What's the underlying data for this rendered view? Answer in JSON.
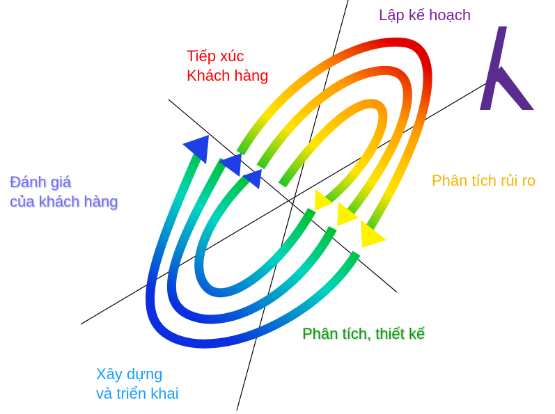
{
  "labels": {
    "planning": "Lập kế hoạch",
    "contact_line1": "Tiếp xúc",
    "contact_line2": "Khách hàng",
    "evaluation_line1": "Đánh giá",
    "evaluation_line2": "của khách hàng",
    "risk_analysis": "Phân tích rủi ro",
    "design": "Phân tích, thiết kế",
    "build_line1": "Xây dựng",
    "build_line2": "và triển khai"
  },
  "colors": {
    "planning": "#7b1fa2",
    "contact": "#ff0000",
    "evaluation": "#6b6bff",
    "risk_analysis": "#f7b500",
    "design": "#00a000",
    "build": "#1a9cff",
    "logo": "#5b2c8f",
    "spiral_gradient": [
      "#0a2ee0",
      "#00d5c0",
      "#00c02a",
      "#ffe600",
      "#ff7a00",
      "#d00000"
    ]
  },
  "logo": {
    "icon": "h-letter-logo-icon"
  }
}
